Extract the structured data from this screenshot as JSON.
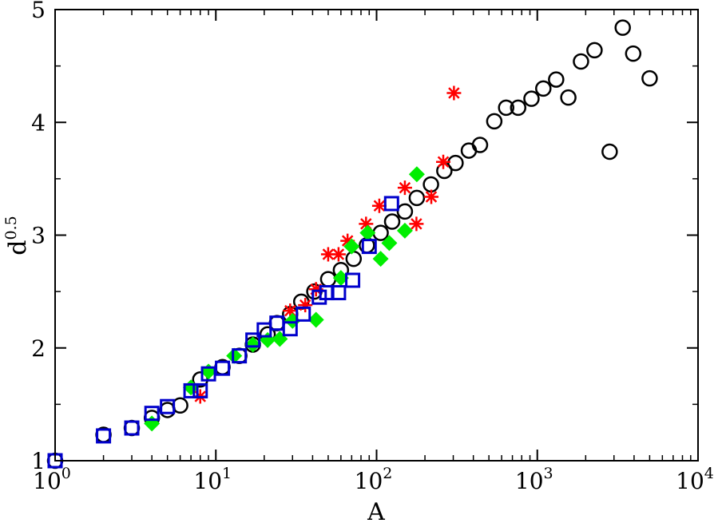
{
  "chart_data": {
    "type": "scatter",
    "xscale": "log",
    "xlim": [
      1,
      10000
    ],
    "ylim": [
      1,
      5
    ],
    "xlabel": "A",
    "ylabel_base": "d",
    "ylabel_exp": "0.5",
    "xticks": [
      {
        "value": 1,
        "base": "10",
        "exp": "0"
      },
      {
        "value": 10,
        "base": "10",
        "exp": "1"
      },
      {
        "value": 100,
        "base": "10",
        "exp": "2"
      },
      {
        "value": 1000,
        "base": "10",
        "exp": "3"
      },
      {
        "value": 10000,
        "base": "10",
        "exp": "4"
      }
    ],
    "yticks": [
      {
        "value": 1,
        "label": "1"
      },
      {
        "value": 2,
        "label": "2"
      },
      {
        "value": 3,
        "label": "3"
      },
      {
        "value": 4,
        "label": "4"
      },
      {
        "value": 5,
        "label": "5"
      }
    ],
    "grid": false,
    "legend": "none",
    "series": [
      {
        "marker": "open-circle",
        "color": "#000000",
        "points": [
          [
            1,
            1.0
          ],
          [
            2,
            1.23
          ],
          [
            3,
            1.29
          ],
          [
            4,
            1.38
          ],
          [
            5,
            1.45
          ],
          [
            6,
            1.49
          ],
          [
            8,
            1.72
          ],
          [
            11,
            1.83
          ],
          [
            14,
            1.93
          ],
          [
            17,
            2.03
          ],
          [
            21,
            2.12
          ],
          [
            24,
            2.22
          ],
          [
            29,
            2.3
          ],
          [
            34,
            2.41
          ],
          [
            41,
            2.5
          ],
          [
            50,
            2.61
          ],
          [
            60,
            2.69
          ],
          [
            72,
            2.79
          ],
          [
            87,
            2.91
          ],
          [
            106,
            3.02
          ],
          [
            125,
            3.12
          ],
          [
            150,
            3.21
          ],
          [
            178,
            3.33
          ],
          [
            218,
            3.45
          ],
          [
            264,
            3.57
          ],
          [
            310,
            3.64
          ],
          [
            375,
            3.75
          ],
          [
            440,
            3.8
          ],
          [
            540,
            4.01
          ],
          [
            640,
            4.13
          ],
          [
            760,
            4.13
          ],
          [
            920,
            4.21
          ],
          [
            1090,
            4.3
          ],
          [
            1310,
            4.38
          ],
          [
            1560,
            4.22
          ],
          [
            1870,
            4.54
          ],
          [
            2270,
            4.64
          ],
          [
            2820,
            3.74
          ],
          [
            3400,
            4.84
          ],
          [
            3950,
            4.61
          ],
          [
            5000,
            4.39
          ]
        ]
      },
      {
        "marker": "asterisk",
        "color": "#ff0000",
        "points": [
          [
            8,
            1.57
          ],
          [
            29,
            2.33
          ],
          [
            36,
            2.38
          ],
          [
            42,
            2.52
          ],
          [
            50,
            2.83
          ],
          [
            58,
            2.83
          ],
          [
            66,
            2.95
          ],
          [
            86,
            3.1
          ],
          [
            104,
            3.26
          ],
          [
            150,
            3.42
          ],
          [
            177,
            3.1
          ],
          [
            219,
            3.34
          ],
          [
            260,
            3.65
          ],
          [
            303,
            4.26
          ]
        ]
      },
      {
        "marker": "filled-diamond",
        "color": "#00ee00",
        "points": [
          [
            4,
            1.33
          ],
          [
            7,
            1.65
          ],
          [
            9,
            1.79
          ],
          [
            13,
            1.93
          ],
          [
            17,
            2.03
          ],
          [
            21,
            2.07
          ],
          [
            25,
            2.08
          ],
          [
            30,
            2.24
          ],
          [
            42,
            2.25
          ],
          [
            60,
            2.62
          ],
          [
            70,
            2.9
          ],
          [
            88,
            3.02
          ],
          [
            106,
            2.79
          ],
          [
            120,
            2.93
          ],
          [
            150,
            3.04
          ],
          [
            178,
            3.54
          ]
        ]
      },
      {
        "marker": "open-square",
        "color": "#0000cc",
        "points": [
          [
            1,
            1.0
          ],
          [
            2,
            1.22
          ],
          [
            3,
            1.29
          ],
          [
            4,
            1.42
          ],
          [
            5,
            1.48
          ],
          [
            7,
            1.62
          ],
          [
            8,
            1.62
          ],
          [
            9,
            1.77
          ],
          [
            11,
            1.82
          ],
          [
            14,
            1.93
          ],
          [
            17,
            2.07
          ],
          [
            20,
            2.16
          ],
          [
            24,
            2.22
          ],
          [
            29,
            2.17
          ],
          [
            35,
            2.3
          ],
          [
            44,
            2.45
          ],
          [
            49,
            2.49
          ],
          [
            58,
            2.49
          ],
          [
            71,
            2.6
          ],
          [
            90,
            2.9
          ],
          [
            124,
            3.28
          ]
        ]
      }
    ]
  }
}
